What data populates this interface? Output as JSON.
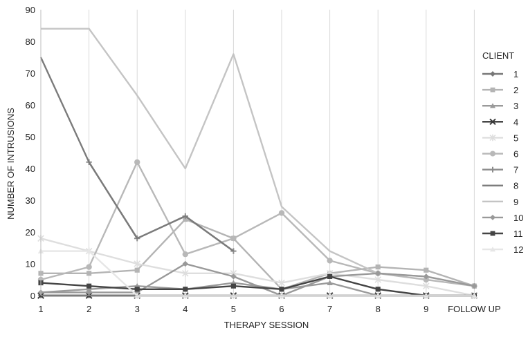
{
  "chart_data": {
    "type": "line",
    "title": "",
    "xlabel": "THERAPY SESSION",
    "ylabel": "NUMBER OF INTRUSIONS",
    "categories": [
      "1",
      "2",
      "3",
      "4",
      "5",
      "6",
      "7",
      "8",
      "9",
      "FOLLOW UP"
    ],
    "ylim": [
      0,
      90
    ],
    "yticks": [
      "0",
      "10",
      "20",
      "30",
      "40",
      "50",
      "60",
      "70",
      "80",
      "90"
    ],
    "grid": "vertical",
    "legend_title": "CLIENT",
    "legend_position": "right",
    "series": [
      {
        "name": "1",
        "color": "#777777",
        "marker": "diamond",
        "values": [
          0,
          0,
          0,
          0,
          0,
          0,
          0,
          0,
          0,
          0
        ]
      },
      {
        "name": "2",
        "color": "#b4b4b4",
        "marker": "square",
        "values": [
          7,
          7,
          8,
          24,
          18,
          2,
          7,
          9,
          8,
          3
        ]
      },
      {
        "name": "3",
        "color": "#9a9a9a",
        "marker": "triangle",
        "values": [
          1,
          2,
          3,
          2,
          4,
          2,
          4,
          0,
          0,
          0
        ]
      },
      {
        "name": "4",
        "color": "#3a3a3a",
        "marker": "x",
        "values": [
          0,
          0,
          0,
          0,
          0,
          0,
          0,
          0,
          0,
          0
        ]
      },
      {
        "name": "5",
        "color": "#dedede",
        "marker": "star",
        "values": [
          18,
          14,
          10,
          7,
          7,
          4,
          7,
          5,
          3,
          0
        ]
      },
      {
        "name": "6",
        "color": "#b8b8b8",
        "marker": "circle",
        "values": [
          5,
          9,
          42,
          13,
          18,
          26,
          11,
          7,
          5,
          3
        ]
      },
      {
        "name": "7",
        "color": "#8c8c8c",
        "marker": "plus",
        "values": [
          null,
          42,
          18,
          25,
          14,
          null,
          null,
          null,
          null,
          null
        ]
      },
      {
        "name": "8",
        "color": "#7b7b7b",
        "marker": "none",
        "values": [
          75,
          42,
          18,
          25,
          14,
          null,
          null,
          null,
          null,
          null
        ]
      },
      {
        "name": "9",
        "color": "#c4c4c4",
        "marker": "none",
        "values": [
          84,
          84,
          63,
          40,
          76,
          28,
          14,
          7,
          6,
          3
        ]
      },
      {
        "name": "10",
        "color": "#999999",
        "marker": "diamond",
        "values": [
          1,
          1,
          1,
          10,
          6,
          0,
          6,
          7,
          6,
          3
        ]
      },
      {
        "name": "11",
        "color": "#444444",
        "marker": "square",
        "values": [
          4,
          3,
          2,
          2,
          3,
          2,
          6,
          2,
          0,
          0
        ]
      },
      {
        "name": "12",
        "color": "#e6e6e6",
        "marker": "triangle",
        "values": [
          14,
          14,
          0,
          0,
          0,
          0,
          0,
          0,
          0,
          0
        ]
      }
    ]
  }
}
